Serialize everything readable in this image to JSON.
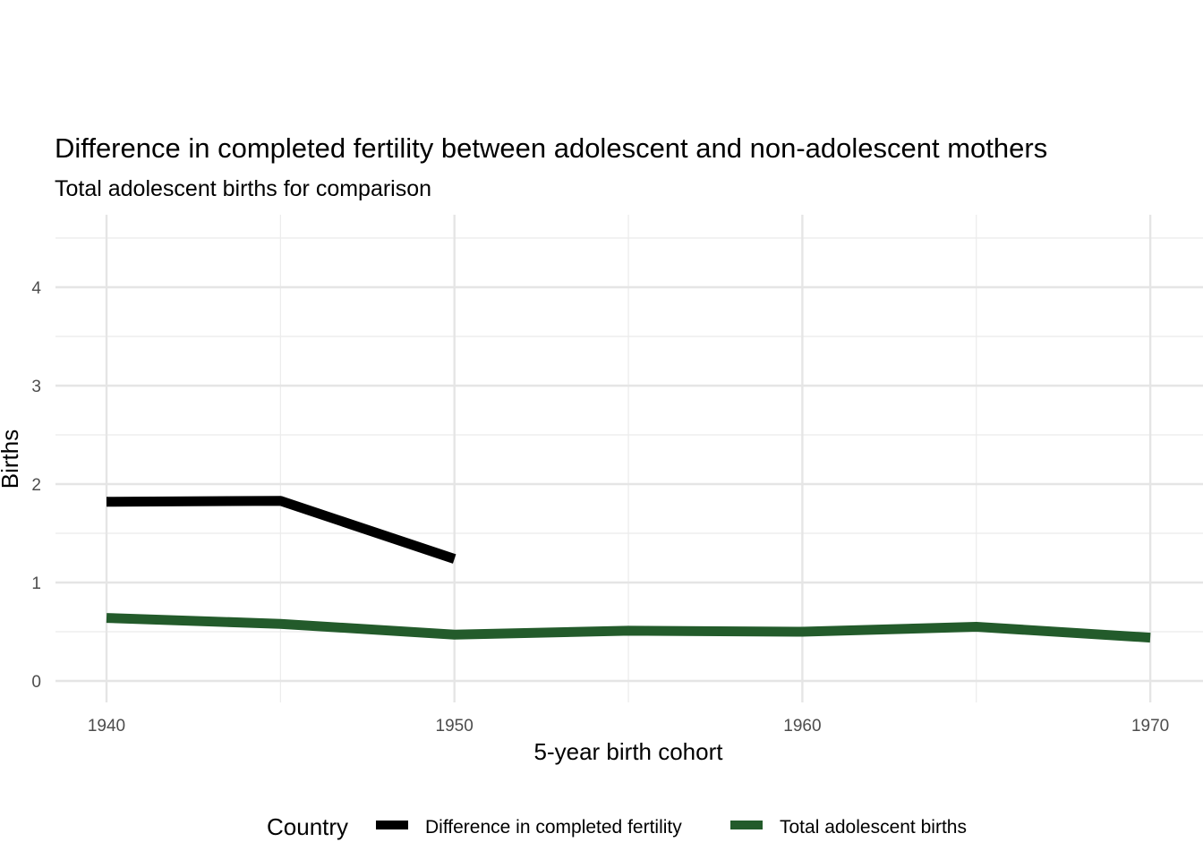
{
  "chart_data": {
    "type": "line",
    "title": "Difference in completed fertility between adolescent and non-adolescent mothers",
    "subtitle": "Total adolescent births for comparison",
    "xlabel": "5-year birth cohort",
    "ylabel": "Births",
    "xlim": [
      1938.5,
      1971.5
    ],
    "ylim": [
      0,
      4.65
    ],
    "x_ticks": [
      1940,
      1950,
      1960,
      1970
    ],
    "y_ticks": [
      0,
      1,
      2,
      3,
      4
    ],
    "grid": true,
    "legend": {
      "title": "Country",
      "position": "bottom"
    },
    "series": [
      {
        "name": "Difference in completed fertility",
        "color": "#000000",
        "x": [
          1940,
          1945,
          1950
        ],
        "y": [
          1.82,
          1.83,
          1.24
        ]
      },
      {
        "name": "Total adolescent births",
        "color": "#235b2b",
        "x": [
          1940,
          1945,
          1950,
          1955,
          1960,
          1965,
          1970
        ],
        "y": [
          0.64,
          0.58,
          0.47,
          0.51,
          0.5,
          0.55,
          0.44
        ]
      }
    ]
  }
}
